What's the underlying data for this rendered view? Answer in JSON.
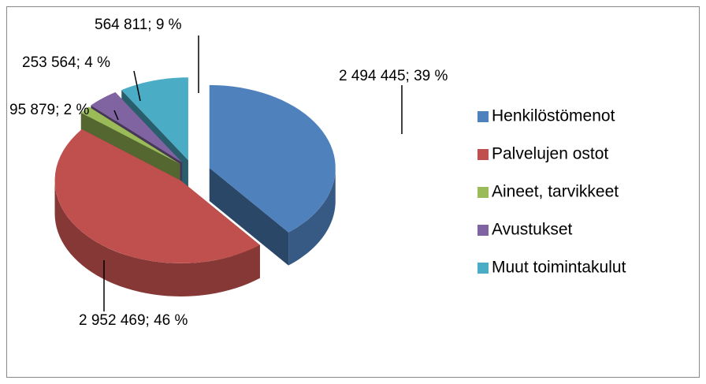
{
  "chart_data": {
    "type": "pie",
    "categories": [
      "Henkilöstömenot",
      "Palvelujen ostot",
      "Aineet, tarvikkeet",
      "Avustukset",
      "Muut toimintakulut"
    ],
    "values": [
      2494445,
      2952469,
      95879,
      253564,
      564811
    ],
    "value_labels": [
      "2 494 445; 39 %",
      "2 952 469; 46 %",
      "95 879; 2 %",
      "253 564; 4 %",
      "564 811; 9 %"
    ],
    "colors": [
      "#4f81bd",
      "#c0504d",
      "#9bbb59",
      "#8064a2",
      "#4bacc6"
    ],
    "legend": "right"
  }
}
